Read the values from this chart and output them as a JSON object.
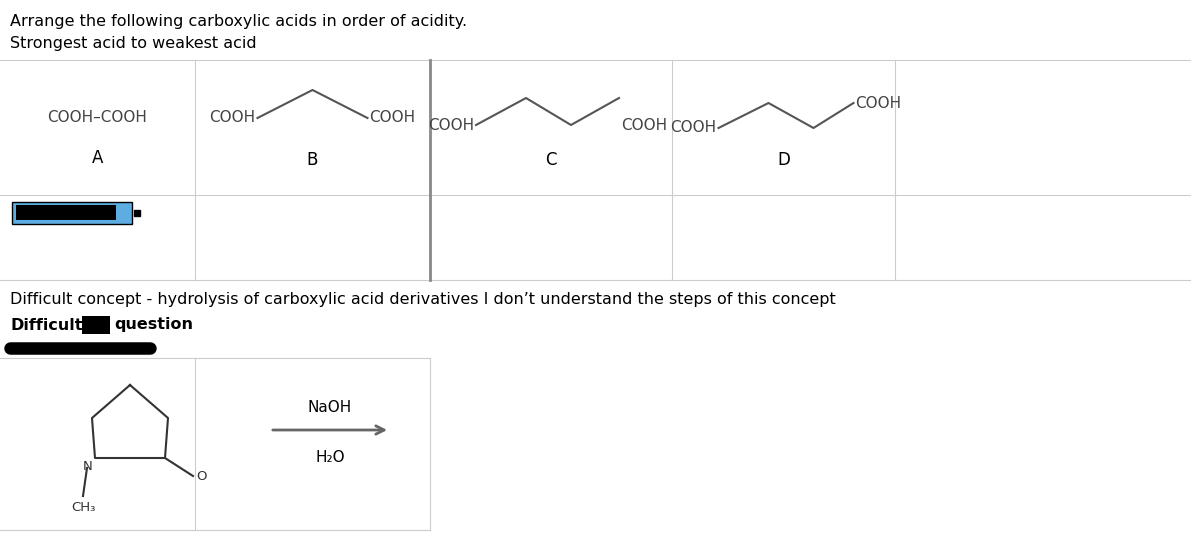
{
  "title_line1": "Arrange the following carboxylic acids in order of acidity.",
  "title_line2": "Strongest acid to weakest acid",
  "bg_color": "#ffffff",
  "text_color": "#000000",
  "grid_line_color": "#cccccc",
  "thick_line_color": "#555555",
  "label_A": "A",
  "label_B": "B",
  "label_C": "C",
  "label_D": "D",
  "mol_A": "COOH–COOH",
  "mol_B_left": "COOH",
  "mol_B_right": "COOH",
  "mol_C_left": "COOH",
  "mol_C_right": "COOH",
  "mol_D_left": "COOH",
  "mol_D_right": "COOH",
  "difficult_concept": "Difficult concept - hydrolysis of carboxylic acid derivatives I don’t understand the steps of this concept",
  "difficult_word": "Difficult",
  "question_word": "question",
  "naoh_label": "NaOH",
  "h2o_label": "H₂O",
  "n_label": "N",
  "o_label": "O",
  "ch3_label": "CH₃",
  "font_size_title": 11.5,
  "font_size_mol": 11,
  "font_size_label": 12,
  "font_size_atom": 9.5
}
